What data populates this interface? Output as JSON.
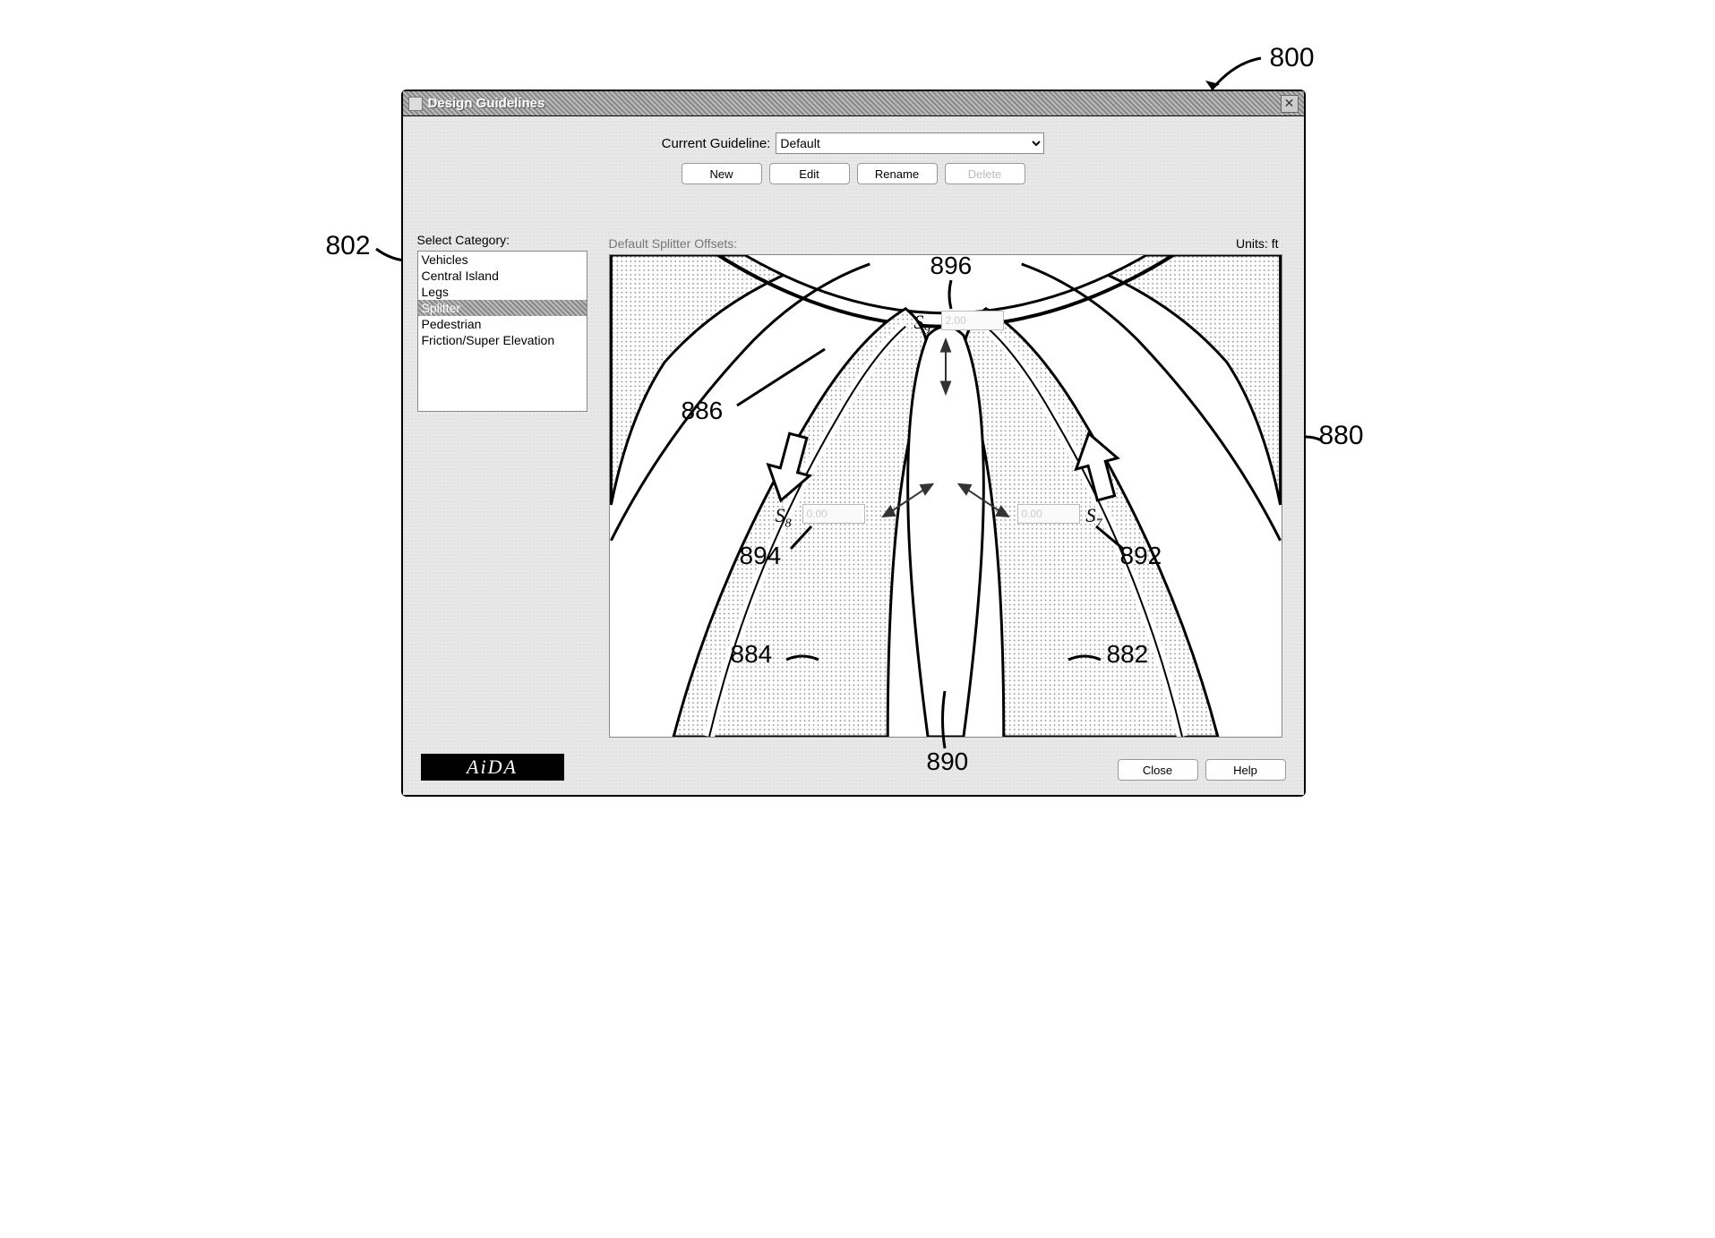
{
  "callouts": {
    "c800": "800",
    "c802": "802",
    "c880": "880",
    "c882": "882",
    "c884": "884",
    "c886": "886",
    "c890": "890",
    "c892": "892",
    "c894": "894",
    "c896": "896"
  },
  "dialog": {
    "title": "Design Guidelines",
    "guideline_label": "Current Guideline:",
    "guideline_value": "Default",
    "buttons": {
      "new": "New",
      "edit": "Edit",
      "rename": "Rename",
      "delete": "Delete",
      "close": "Close",
      "help": "Help"
    },
    "category_label": "Select Category:",
    "categories": [
      "Vehicles",
      "Central Island",
      "Legs",
      "Splitter",
      "Pedestrian",
      "Friction/Super Elevation"
    ],
    "selected_category_index": 3,
    "panel_label": "Default Splitter Offsets:",
    "units_label": "Units: ft",
    "logo": "AiDA"
  },
  "offsets": {
    "s7": {
      "label_html": "S<sub>7</sub>",
      "value": "0.00"
    },
    "s8": {
      "label_html": "S<sub>8</sub>",
      "value": "0.00"
    },
    "s9": {
      "label_html": "S<sub>9</sub>",
      "value": "2.00"
    }
  },
  "style": {
    "road_fill_pattern": "dots",
    "road_fill_color": "#999999",
    "road_stroke": "#000000",
    "road_stroke_width": 3,
    "arrow_outline_fill": "#ffffff",
    "arrow_outline_stroke": "#000000",
    "background": "#ffffff",
    "dialog_bg": "#e8e8e8"
  }
}
